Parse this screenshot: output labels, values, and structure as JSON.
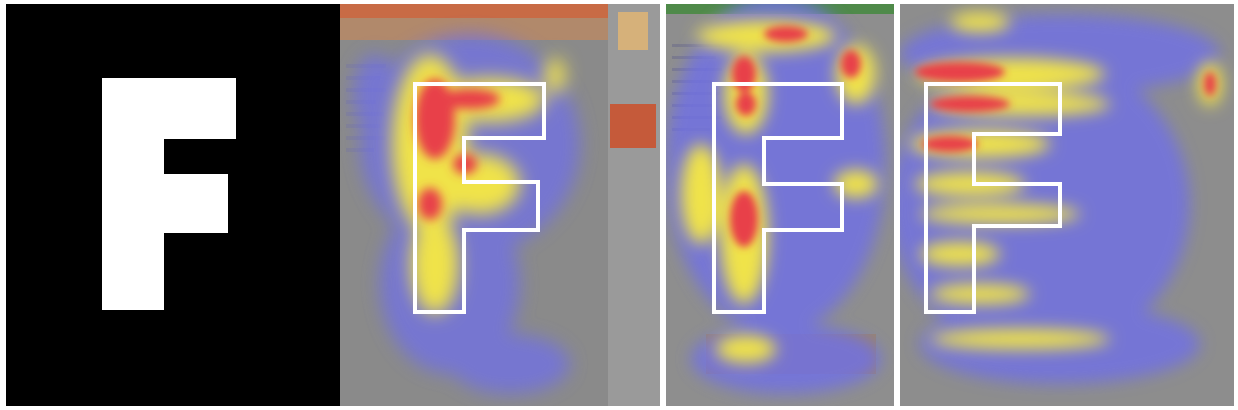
{
  "figure": {
    "title_letter": "F",
    "heatmap_panels": [
      {
        "id": "page-1",
        "outline_letter": "F"
      },
      {
        "id": "page-2",
        "outline_letter": "F"
      },
      {
        "id": "page-3",
        "outline_letter": "F"
      }
    ],
    "colors": {
      "background_black": "#000000",
      "letter_white": "#ffffff",
      "heat_low": "#6f6fe8",
      "heat_mid": "#f0e34a",
      "heat_high": "#e8414a",
      "page_grey": "#8c8c8c"
    }
  }
}
